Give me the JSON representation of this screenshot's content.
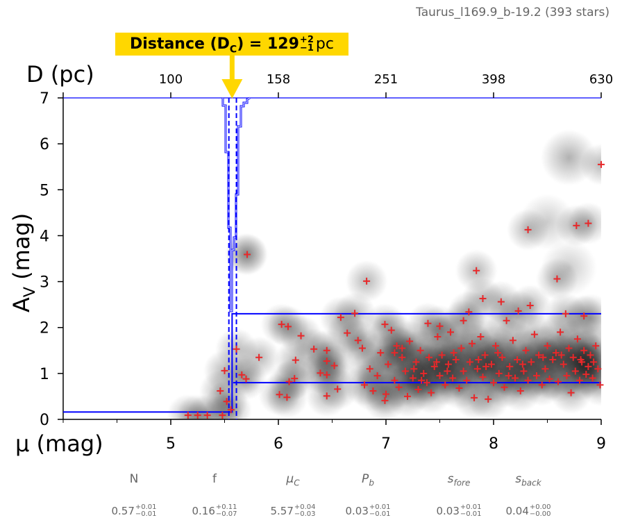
{
  "title": "Taurus_l169.9_b-19.2 (393 stars)",
  "annotation": {
    "prefix": "Distance (D",
    "sub": "C",
    "mid": ") = 129",
    "plus": "+2",
    "minus": "−1",
    "unit": "pc"
  },
  "colors": {
    "annotation": "#FFD700",
    "model": "#0000ff",
    "stars": "#e8282a",
    "labels": "#666666"
  },
  "params": [
    {
      "name": "N",
      "value": "0.57",
      "plus": "+0.01",
      "minus": "−0.01"
    },
    {
      "name": "f",
      "value": "0.16",
      "plus": "+0.11",
      "minus": "−0.07"
    },
    {
      "name": "μ",
      "sub": "C",
      "value": "5.57",
      "plus": "+0.04",
      "minus": "−0.03"
    },
    {
      "name": "P",
      "sub": "b",
      "value": "0.03",
      "plus": "+0.01",
      "minus": "−0.01"
    },
    {
      "name": "s",
      "sub": "fore",
      "value": "0.03",
      "plus": "+0.01",
      "minus": "−0.01"
    },
    {
      "name": "s",
      "sub": "back",
      "value": "0.04",
      "plus": "+0.00",
      "minus": "−0.00"
    }
  ],
  "chart_data": {
    "type": "scatter",
    "xlabel": "μ (mag)",
    "ylabel_main": "A",
    "ylabel_sub": "V",
    "ylabel_unit": " (mag)",
    "xlim": [
      4,
      9
    ],
    "ylim": [
      0,
      7
    ],
    "x_ticks": [
      "5",
      "6",
      "7",
      "8",
      "9"
    ],
    "x_tick_values": [
      5,
      6,
      7,
      8,
      9
    ],
    "y_ticks": [
      "0",
      "1",
      "2",
      "3",
      "4",
      "5",
      "6",
      "7"
    ],
    "y_tick_values": [
      0,
      1,
      2,
      3,
      4,
      5,
      6,
      7
    ],
    "top_axis": {
      "label": "D (pc)",
      "tick_mu": [
        5,
        6,
        7,
        8,
        9
      ],
      "tick_labels": [
        "100",
        "158",
        "251",
        "398",
        "630"
      ]
    },
    "model": {
      "mu_c": 5.57,
      "mu_c_low": 5.54,
      "mu_c_high": 5.61,
      "foreground_av": 0.16,
      "background_av_low": 0.8,
      "background_av_high": 2.3
    },
    "points": [
      [
        5.16,
        0.09
      ],
      [
        5.25,
        0.09
      ],
      [
        5.34,
        0.09
      ],
      [
        5.48,
        0.09
      ],
      [
        5.56,
        0.21
      ],
      [
        5.52,
        0.39
      ],
      [
        5.46,
        0.62
      ],
      [
        5.5,
        1.06
      ],
      [
        5.61,
        1.53
      ],
      [
        5.66,
        0.97
      ],
      [
        5.7,
        0.88
      ],
      [
        5.71,
        3.59
      ],
      [
        5.82,
        1.35
      ],
      [
        6.01,
        0.54
      ],
      [
        6.03,
        2.07
      ],
      [
        6.09,
        2.02
      ],
      [
        6.08,
        0.48
      ],
      [
        6.1,
        0.82
      ],
      [
        6.15,
        0.89
      ],
      [
        6.16,
        1.29
      ],
      [
        6.21,
        1.82
      ],
      [
        6.33,
        1.53
      ],
      [
        6.39,
        1.01
      ],
      [
        6.45,
        1.5
      ],
      [
        6.45,
        1.27
      ],
      [
        6.45,
        0.97
      ],
      [
        6.45,
        0.51
      ],
      [
        6.52,
        1.17
      ],
      [
        6.55,
        0.66
      ],
      [
        6.58,
        2.22
      ],
      [
        6.64,
        1.88
      ],
      [
        6.71,
        2.31
      ],
      [
        6.74,
        1.72
      ],
      [
        6.82,
        3.01
      ],
      [
        6.99,
        2.07
      ],
      [
        7.05,
        1.94
      ],
      [
        6.99,
        0.41
      ],
      [
        7.39,
        2.09
      ],
      [
        7.5,
        2.03
      ],
      [
        7.72,
        2.15
      ],
      [
        7.84,
        3.24
      ],
      [
        7.9,
        2.63
      ],
      [
        8.07,
        2.56
      ],
      [
        8.23,
        2.36
      ],
      [
        8.34,
        2.48
      ],
      [
        7.77,
        2.34
      ],
      [
        8.32,
        4.13
      ],
      [
        8.77,
        4.22
      ],
      [
        8.88,
        4.27
      ],
      [
        8.59,
        3.06
      ],
      [
        9.0,
        5.55
      ],
      [
        8.84,
        2.25
      ],
      [
        8.67,
        2.3
      ],
      [
        6.78,
        1.55
      ],
      [
        6.8,
        0.75
      ],
      [
        6.85,
        1.1
      ],
      [
        6.88,
        0.62
      ],
      [
        6.92,
        0.95
      ],
      [
        6.95,
        1.45
      ],
      [
        7.0,
        0.55
      ],
      [
        7.02,
        1.2
      ],
      [
        7.08,
        0.85
      ],
      [
        7.1,
        1.6
      ],
      [
        7.12,
        0.7
      ],
      [
        7.15,
        1.35
      ],
      [
        7.18,
        1.05
      ],
      [
        7.2,
        0.5
      ],
      [
        7.22,
        1.7
      ],
      [
        7.25,
        0.9
      ],
      [
        7.28,
        1.25
      ],
      [
        7.3,
        0.65
      ],
      [
        7.32,
        1.5
      ],
      [
        7.35,
        1.0
      ],
      [
        7.38,
        0.8
      ],
      [
        7.4,
        1.35
      ],
      [
        7.42,
        0.58
      ],
      [
        7.45,
        1.15
      ],
      [
        7.48,
        1.8
      ],
      [
        7.5,
        0.95
      ],
      [
        7.52,
        1.4
      ],
      [
        7.55,
        0.75
      ],
      [
        7.58,
        1.2
      ],
      [
        7.6,
        1.9
      ],
      [
        7.62,
        0.9
      ],
      [
        7.65,
        1.3
      ],
      [
        7.68,
        0.68
      ],
      [
        7.7,
        1.55
      ],
      [
        7.72,
        1.05
      ],
      [
        7.75,
        0.85
      ],
      [
        7.78,
        1.25
      ],
      [
        7.8,
        1.65
      ],
      [
        7.82,
        0.47
      ],
      [
        7.85,
        1.1
      ],
      [
        7.88,
        1.8
      ],
      [
        7.9,
        0.92
      ],
      [
        7.92,
        1.4
      ],
      [
        7.95,
        0.44
      ],
      [
        7.98,
        1.2
      ],
      [
        8.0,
        0.8
      ],
      [
        8.02,
        1.6
      ],
      [
        8.05,
        1.0
      ],
      [
        8.08,
        1.35
      ],
      [
        8.1,
        0.7
      ],
      [
        8.12,
        2.15
      ],
      [
        8.15,
        1.15
      ],
      [
        8.18,
        1.72
      ],
      [
        8.2,
        0.9
      ],
      [
        8.22,
        1.3
      ],
      [
        8.25,
        0.62
      ],
      [
        8.28,
        1.05
      ],
      [
        8.3,
        1.5
      ],
      [
        8.32,
        0.85
      ],
      [
        8.35,
        1.25
      ],
      [
        8.38,
        1.85
      ],
      [
        8.4,
        0.95
      ],
      [
        8.42,
        1.4
      ],
      [
        8.45,
        0.75
      ],
      [
        8.48,
        1.1
      ],
      [
        8.5,
        1.6
      ],
      [
        8.52,
        0.88
      ],
      [
        8.55,
        1.3
      ],
      [
        8.58,
        1.45
      ],
      [
        8.6,
        0.82
      ],
      [
        8.62,
        1.9
      ],
      [
        8.65,
        1.2
      ],
      [
        8.68,
        0.95
      ],
      [
        8.7,
        1.55
      ],
      [
        8.72,
        0.58
      ],
      [
        8.74,
        1.35
      ],
      [
        8.76,
        1.05
      ],
      [
        8.78,
        1.75
      ],
      [
        8.8,
        0.85
      ],
      [
        8.82,
        1.25
      ],
      [
        8.84,
        1.5
      ],
      [
        8.86,
        0.98
      ],
      [
        8.88,
        1.15
      ],
      [
        8.9,
        1.4
      ],
      [
        8.92,
        0.9
      ],
      [
        8.95,
        1.6
      ],
      [
        8.97,
        1.1
      ],
      [
        8.99,
        0.75
      ],
      [
        7.15,
        1.55
      ],
      [
        7.33,
        0.85
      ],
      [
        7.47,
        1.25
      ],
      [
        7.63,
        1.45
      ],
      [
        7.86,
        1.3
      ],
      [
        8.04,
        1.45
      ],
      [
        8.27,
        1.2
      ],
      [
        8.46,
        1.35
      ],
      [
        8.63,
        1.4
      ],
      [
        8.81,
        1.3
      ],
      [
        8.93,
        1.25
      ],
      [
        7.08,
        1.45
      ],
      [
        7.26,
        1.1
      ],
      [
        7.57,
        1.05
      ],
      [
        7.93,
        1.15
      ],
      [
        8.14,
        0.95
      ]
    ]
  }
}
